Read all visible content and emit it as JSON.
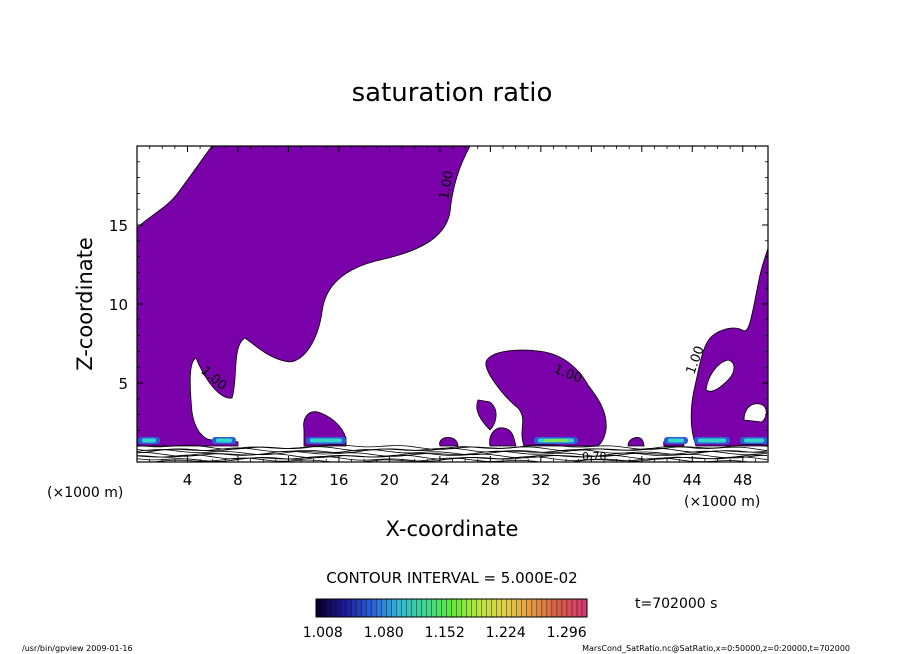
{
  "chart_data": {
    "type": "heatmap",
    "title": "saturation ratio",
    "xlabel": "X-coordinate",
    "ylabel": "Z-coordinate",
    "x_unit": "(×1000 m)",
    "y_unit": "(×1000 m)",
    "xlim": [
      0,
      50
    ],
    "ylim": [
      0,
      20
    ],
    "x_ticks": [
      4,
      8,
      12,
      16,
      20,
      24,
      28,
      32,
      36,
      40,
      44,
      48
    ],
    "y_ticks": [
      5,
      10,
      15
    ],
    "contour_labels": [
      "1.00",
      "1.00",
      "1.00",
      "1.00",
      "0.70"
    ],
    "contour_interval": "CONTOUR INTERVAL = 5.000E-02",
    "colorbar": {
      "tick_labels": [
        "1.008",
        "1.080",
        "1.152",
        "1.224",
        "1.296"
      ],
      "min": 1.0,
      "max": 1.32,
      "colors_low_to_high": [
        "#0b0033",
        "#1d1a9a",
        "#2d5fd8",
        "#36b7d6",
        "#40d690",
        "#5fe83c",
        "#b6e640",
        "#dfd24a",
        "#e39a44",
        "#d75d4a",
        "#d63c72"
      ]
    },
    "time_label": "t=702000 s",
    "fill_color": "#7a00aa"
  },
  "footer": {
    "left": "/usr/bin/gpview   2009-01-16",
    "right": "MarsCond_SatRatio.nc@SatRatio,x=0:50000,z=0:20000,t=702000"
  }
}
